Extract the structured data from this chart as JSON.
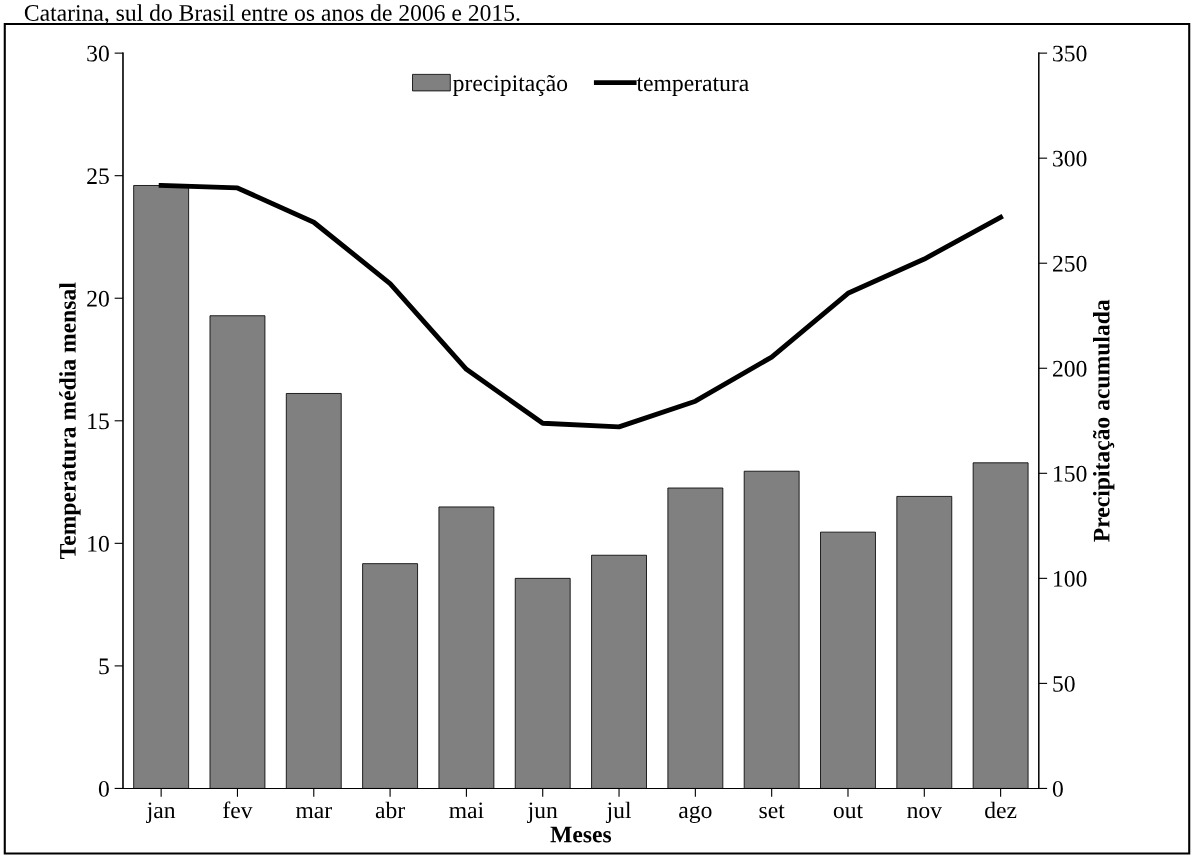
{
  "chart_data": {
    "type": "bar",
    "annotations": [
      "Catarina, sul do Brasil entre os anos de 2006 e 2015."
    ],
    "xlabel": "Meses",
    "ylabel": "Temperatura média mensal",
    "y2label": "Precipitação acumulada",
    "categories": [
      "jan",
      "fev",
      "mar",
      "abr",
      "mai",
      "jun",
      "jul",
      "ago",
      "set",
      "out",
      "nov",
      "dez"
    ],
    "series": [
      {
        "name": "precipitação",
        "axis": "y2",
        "color": "#808080",
        "values": [
          287,
          225,
          188,
          107,
          134,
          100,
          111,
          143,
          151,
          122,
          139,
          155
        ]
      },
      {
        "name": "temperatura",
        "type": "line",
        "color": "#000000",
        "values": [
          24.6,
          24.5,
          23.1,
          20.6,
          17.1,
          14.9,
          14.75,
          15.8,
          17.6,
          20.2,
          21.6,
          23.3
        ]
      }
    ],
    "ylim": [
      0,
      30
    ],
    "yticks": [
      0,
      5,
      10,
      15,
      20,
      25,
      30
    ],
    "y2lim": [
      0,
      350
    ],
    "y2ticks": [
      0,
      50,
      100,
      150,
      200,
      250,
      300,
      350
    ],
    "legend": "top",
    "grid": false,
    "marker": "none",
    "line_style": "solid"
  }
}
